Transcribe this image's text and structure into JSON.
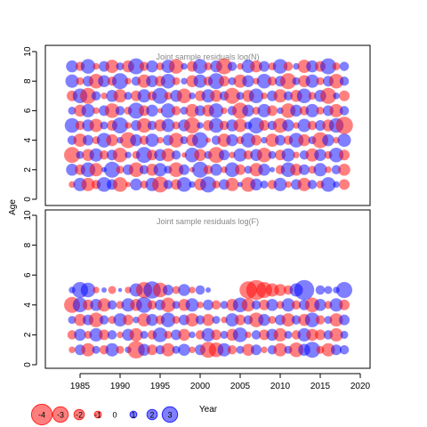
{
  "colors": {
    "negative": "#ff0000",
    "positive": "#0000ff",
    "bubble_opacity": 0.5,
    "title": "#888888",
    "axis": "#000000"
  },
  "ylabel": "Age",
  "xlabel": "Year",
  "legend": {
    "values": [
      -4,
      -3,
      -2,
      -1,
      0,
      1,
      2,
      3
    ],
    "labels": [
      "-4",
      "-3",
      "-2",
      "-1",
      "0",
      "1",
      "2",
      "3"
    ]
  },
  "chart_data": [
    {
      "type": "scatter",
      "subtype": "bubble",
      "title": "Joint sample residuals log(N)",
      "xlabel": "Year",
      "ylabel": "Age",
      "xlim": [
        1982,
        2020
      ],
      "ylim": [
        0,
        10
      ],
      "x_ticks": [
        1985,
        1990,
        1995,
        2000,
        2005,
        2010,
        2015,
        2020
      ],
      "y_ticks": [
        0,
        2,
        4,
        6,
        8,
        10
      ],
      "grid": false,
      "years_start": 1984,
      "ages": [
        1,
        2,
        3,
        4,
        5,
        6,
        7,
        8,
        9
      ],
      "residuals": [
        [
          -0.5,
          1.0,
          -1.0,
          -0.7,
          1.1,
          0.8,
          -1.1,
          -0.4,
          0.9,
          -0.6,
          1.0,
          -1.2,
          0.7,
          -0.8,
          1.1,
          0.5,
          -0.9,
          1.2,
          -0.6,
          0.8,
          -1.0,
          0.4,
          -1.1,
          0.9,
          0.6,
          -0.7,
          1.0,
          -0.5,
          0.8,
          -1.0,
          0.7,
          -0.6,
          1.1,
          0.5,
          -0.8
        ],
        [
          0.9,
          -0.8,
          1.1,
          -1.0,
          0.4,
          1.2,
          -0.6,
          0.8,
          -1.1,
          0.7,
          -0.9,
          1.0,
          0.6,
          -1.1,
          0.8,
          -0.4,
          1.2,
          -0.7,
          0.9,
          -0.5,
          1.1,
          -0.8,
          0.6,
          -1.0,
          0.9,
          0.4,
          -0.7,
          1.1,
          -0.9,
          0.8,
          -0.6,
          1.0,
          -0.5,
          0.7,
          -0.9
        ],
        [
          -1.2,
          0.6,
          -0.9,
          1.0,
          -0.7,
          0.8,
          -1.1,
          0.5,
          -0.6,
          1.2,
          -0.8,
          0.9,
          -1.0,
          0.7,
          -0.4,
          1.1,
          -0.9,
          0.6,
          -1.2,
          0.8,
          -0.5,
          1.0,
          -0.7,
          0.9,
          -1.1,
          0.6,
          -0.8,
          1.0,
          -0.5,
          0.7,
          -1.0,
          0.9,
          -0.6,
          1.1,
          -0.8
        ],
        [
          0.7,
          -1.0,
          0.8,
          -0.6,
          1.1,
          -0.9,
          0.5,
          -1.2,
          0.9,
          -0.7,
          1.0,
          -0.5,
          0.8,
          -1.1,
          0.6,
          -0.9,
          1.2,
          -0.4,
          0.7,
          -1.0,
          0.9,
          -0.6,
          1.1,
          -0.8,
          0.5,
          -1.0,
          0.8,
          -0.7,
          1.1,
          -0.9,
          0.6,
          -1.2,
          0.9,
          -0.5,
          1.0
        ],
        [
          1.1,
          -0.7,
          0.9,
          -1.0,
          0.6,
          -0.8,
          1.2,
          -0.5,
          0.8,
          -1.1,
          0.7,
          -0.9,
          1.0,
          -0.6,
          0.9,
          -1.2,
          0.5,
          -0.8,
          1.1,
          -0.7,
          0.9,
          -1.0,
          0.6,
          1.2,
          -0.8,
          0.7,
          -1.1,
          0.9,
          -0.5,
          1.0,
          -0.7,
          0.8,
          -0.9,
          1.1,
          -1.3
        ],
        [
          0.6,
          -0.9,
          1.0,
          -0.5,
          0.8,
          -1.1,
          0.7,
          -0.6,
          1.2,
          -0.8,
          0.9,
          -0.4,
          1.1,
          -0.7,
          0.6,
          -1.0,
          0.8,
          -0.9,
          1.1,
          -0.5,
          0.7,
          -1.2,
          0.9,
          -0.6,
          1.0,
          -0.8,
          0.5,
          -1.1,
          0.9,
          -0.7,
          1.0,
          -0.6,
          0.8,
          -1.0,
          0.7
        ],
        [
          -0.8,
          1.1,
          -1.2,
          0.7,
          -0.5,
          0.9,
          -1.0,
          0.6,
          -0.8,
          1.0,
          -0.7,
          1.2,
          -0.6,
          0.9,
          -1.1,
          0.5,
          -0.8,
          1.0,
          -0.9,
          0.7,
          -1.2,
          0.6,
          -0.9,
          1.1,
          -0.5,
          0.8,
          -1.0,
          0.7,
          -0.9,
          1.1,
          -0.6,
          0.9,
          -1.2,
          0.5,
          -0.8
        ],
        [
          1.0,
          -0.6,
          0.8,
          -1.1,
          0.9,
          -0.7,
          1.2,
          -0.5,
          0.7,
          -1.0,
          0.9,
          -0.8,
          1.1,
          -0.6,
          0.5,
          -0.9,
          1.0,
          -0.7,
          1.2,
          -0.8,
          0.6,
          -1.0,
          0.9,
          -0.5,
          1.1,
          -0.7,
          0.8,
          -1.2,
          0.6,
          -0.9,
          1.0,
          -0.6,
          0.8,
          -1.1,
          0.7
        ],
        [
          0.9,
          -0.7,
          1.1,
          -0.5,
          0.8,
          -1.0,
          0.6,
          -0.9,
          1.2,
          -0.7,
          0.9,
          -0.6,
          1.0,
          -1.1,
          0.5,
          -0.8,
          1.1,
          -0.6,
          0.9,
          -1.2,
          0.7,
          -0.5,
          1.0,
          -0.9,
          0.8,
          -0.6,
          1.1,
          -0.7,
          0.5,
          -1.0,
          0.9,
          -0.8,
          1.2,
          -0.6,
          0.7
        ]
      ]
    },
    {
      "type": "scatter",
      "subtype": "bubble",
      "title": "Joint sample residuals log(F)",
      "xlabel": "Year",
      "ylabel": "Age",
      "xlim": [
        1982,
        2020
      ],
      "ylim": [
        0,
        10
      ],
      "x_ticks": [
        1985,
        1990,
        1995,
        2000,
        2005,
        2010,
        2015,
        2020
      ],
      "y_ticks": [
        0,
        2,
        4,
        6,
        8,
        10
      ],
      "grid": false,
      "years_start": 1984,
      "ages": [
        1,
        2,
        3,
        4,
        5
      ],
      "residuals": [
        [
          -0.5,
          0.8,
          -1.0,
          0.6,
          -0.7,
          1.0,
          -0.6,
          0.5,
          -1.3,
          0.9,
          -0.8,
          0.7,
          -1.0,
          0.6,
          0.9,
          -0.5,
          0.8,
          -1.2,
          -1.1,
          1.0,
          -0.7,
          0.6,
          -0.9,
          0.8,
          -0.5,
          0.7,
          -1.0,
          0.6,
          -1.1,
          0.9,
          1.2,
          -0.6,
          -1.0,
          0.8,
          0.7
        ],
        [
          -0.7,
          0.9,
          -0.6,
          1.0,
          -0.8,
          0.7,
          -0.5,
          0.9,
          -1.0,
          0.6,
          -0.7,
          1.1,
          -0.6,
          0.8,
          -0.9,
          0.5,
          -0.7,
          1.0,
          -0.8,
          0.6,
          -0.9,
          1.1,
          -0.5,
          0.7,
          -0.8,
          0.9,
          -1.0,
          0.6,
          -0.7,
          1.0,
          -0.9,
          -0.8,
          0.7,
          -1.0,
          0.6
        ],
        [
          0.6,
          -0.9,
          0.8,
          -1.1,
          0.7,
          -0.6,
          1.0,
          -0.8,
          0.5,
          -1.0,
          0.9,
          -0.7,
          1.1,
          -0.6,
          0.8,
          -1.0,
          0.7,
          -0.9,
          0.6,
          -0.5,
          1.0,
          -0.8,
          0.7,
          -1.1,
          0.9,
          -0.6,
          0.8,
          -1.0,
          0.7,
          -0.9,
          1.1,
          -0.7,
          0.6,
          -1.0,
          0.8
        ],
        [
          -1.2,
          1.1,
          -0.8,
          0.9,
          -1.0,
          0.7,
          -0.6,
          1.0,
          -0.9,
          1.2,
          -0.7,
          0.8,
          -1.1,
          0.6,
          -0.9,
          1.0,
          -0.5,
          0.8,
          -0.7,
          0.6,
          -0.9,
          1.1,
          -1.0,
          0.7,
          -0.8,
          0.9,
          -0.6,
          1.0,
          -0.7,
          0.8,
          -1.1,
          0.9,
          -0.6,
          1.0,
          -0.8
        ],
        [
          0.5,
          1.2,
          1.1,
          -0.5,
          0.4,
          -0.6,
          0.3,
          -0.5,
          1.0,
          -1.2,
          1.3,
          -1.1,
          0.8,
          -0.6,
          0.9,
          -0.5,
          0.7,
          0.4,
          0.0,
          0.0,
          0.0,
          0.0,
          -1.3,
          -1.5,
          -1.2,
          -1.0,
          -0.9,
          -0.7,
          1.0,
          1.5,
          0.0,
          0.7,
          0.6,
          0.5,
          1.2
        ]
      ]
    }
  ]
}
